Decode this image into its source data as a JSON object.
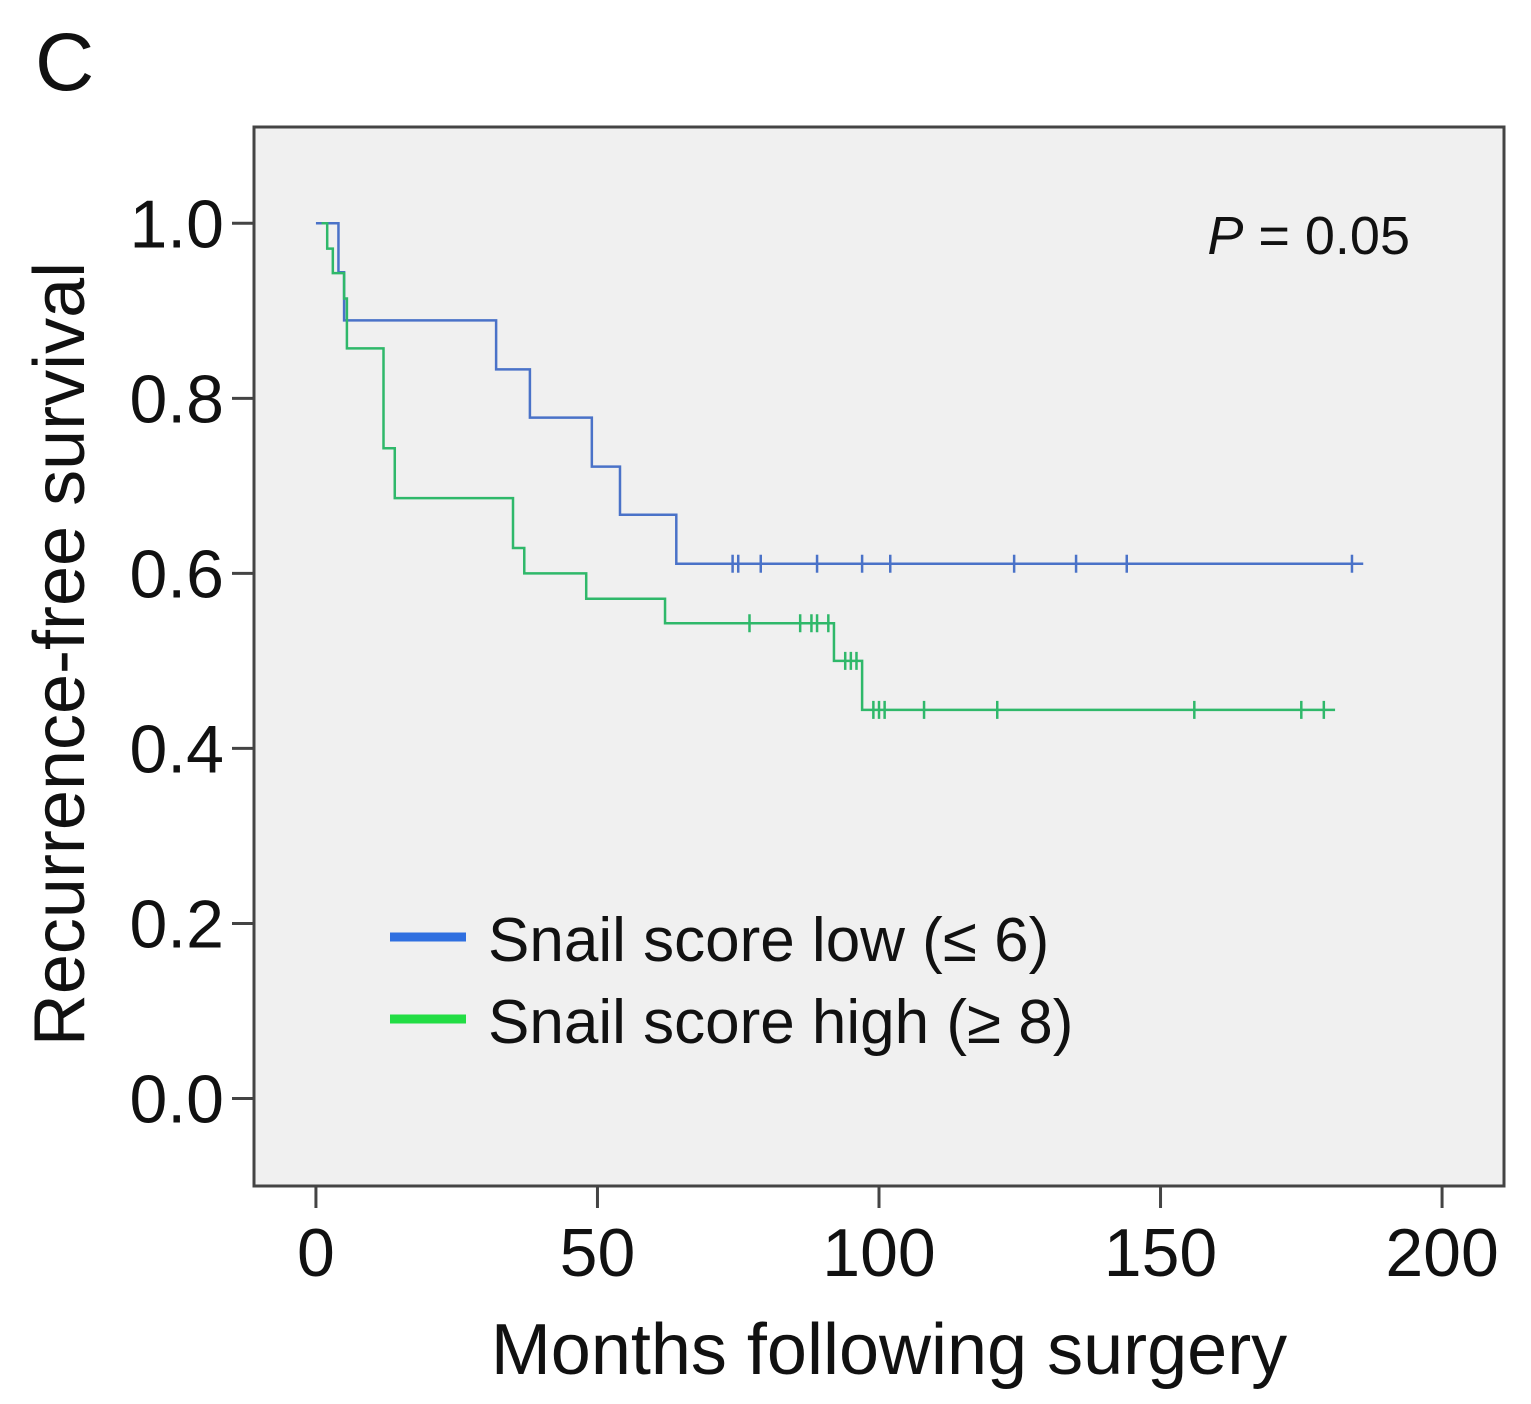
{
  "panel_label": "C",
  "chart_data": {
    "type": "line",
    "subtype": "kaplan-meier",
    "xlabel": "Months following surgery",
    "ylabel": "Recurrence-free survival",
    "xlim": [
      -11,
      211
    ],
    "ylim": [
      -0.1,
      1.11
    ],
    "xticks": [
      0,
      50,
      100,
      150,
      200
    ],
    "xtick_labels": [
      "0",
      "50",
      "100",
      "150",
      "200"
    ],
    "yticks": [
      0.0,
      0.2,
      0.4,
      0.6,
      0.8,
      1.0
    ],
    "ytick_labels": [
      "0.0",
      "0.2",
      "0.4",
      "0.6",
      "0.8",
      "1.0"
    ],
    "grid": false,
    "annotation": {
      "italic": "P",
      "text": " = 0.05"
    },
    "legend_position": "bottom-left",
    "series": [
      {
        "name": "Snail score low (≤ 6)",
        "color": "#4a72c8",
        "legend_color": "#2f6fe0",
        "steps": [
          [
            0,
            1.0
          ],
          [
            4,
            0.944
          ],
          [
            5,
            0.889
          ],
          [
            32,
            0.833
          ],
          [
            38,
            0.778
          ],
          [
            49,
            0.722
          ],
          [
            54,
            0.667
          ],
          [
            64,
            0.611
          ],
          [
            186,
            0.611
          ]
        ],
        "censored": [
          [
            74,
            0.611
          ],
          [
            75,
            0.611
          ],
          [
            79,
            0.611
          ],
          [
            89,
            0.611
          ],
          [
            97,
            0.611
          ],
          [
            102,
            0.611
          ],
          [
            124,
            0.611
          ],
          [
            135,
            0.611
          ],
          [
            144,
            0.611
          ],
          [
            184,
            0.611
          ]
        ]
      },
      {
        "name": "Snail score high (≥ 8)",
        "color": "#2fb86a",
        "legend_color": "#22dd44",
        "steps": [
          [
            1,
            1.0
          ],
          [
            2,
            0.971
          ],
          [
            3,
            0.943
          ],
          [
            5,
            0.914
          ],
          [
            5.5,
            0.857
          ],
          [
            12,
            0.743
          ],
          [
            14,
            0.686
          ],
          [
            35,
            0.629
          ],
          [
            37,
            0.6
          ],
          [
            48,
            0.571
          ],
          [
            62,
            0.543
          ],
          [
            92,
            0.5
          ],
          [
            97,
            0.444
          ],
          [
            181,
            0.444
          ]
        ],
        "censored": [
          [
            77,
            0.543
          ],
          [
            86,
            0.543
          ],
          [
            88,
            0.543
          ],
          [
            89,
            0.543
          ],
          [
            91,
            0.543
          ],
          [
            94,
            0.5
          ],
          [
            95,
            0.5
          ],
          [
            96,
            0.5
          ],
          [
            99,
            0.444
          ],
          [
            100,
            0.444
          ],
          [
            101,
            0.444
          ],
          [
            108,
            0.444
          ],
          [
            121,
            0.444
          ],
          [
            156,
            0.444
          ],
          [
            175,
            0.444
          ],
          [
            179,
            0.444
          ]
        ]
      }
    ]
  }
}
